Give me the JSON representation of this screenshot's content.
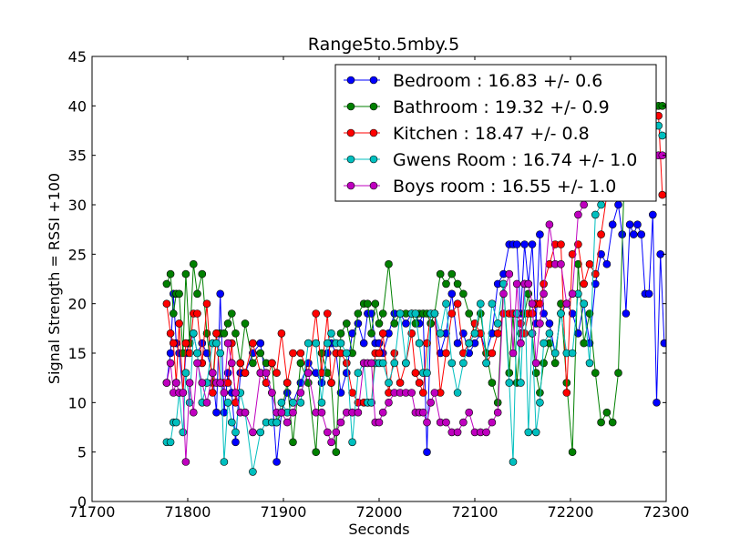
{
  "chart_data": {
    "type": "line",
    "title": "Range5to.5mby.5",
    "xlabel": "Seconds",
    "ylabel": "Signal Strength  = RSSI +100",
    "xlim": [
      71700,
      72300
    ],
    "ylim": [
      0,
      45
    ],
    "xticks": [
      "71700",
      "71800",
      "71900",
      "72000",
      "72100",
      "72200",
      "72300"
    ],
    "yticks": [
      "0",
      "5",
      "10",
      "15",
      "20",
      "25",
      "30",
      "35",
      "40",
      "45"
    ],
    "grid": false,
    "legend_position": "top-right",
    "series": [
      {
        "name": "Bedroom : 16.83 +/- 0.6",
        "color": "#0000ff",
        "x": [
          71778,
          71782,
          71785,
          71788,
          71791,
          71795,
          71798,
          71802,
          71806,
          71810,
          71815,
          71820,
          71826,
          71830,
          71834,
          71838,
          71842,
          71846,
          71850,
          71855,
          71860,
          71868,
          71876,
          71882,
          71888,
          71893,
          71898,
          71904,
          71910,
          71918,
          71926,
          71934,
          71940,
          71946,
          71950,
          71955,
          71960,
          71966,
          71972,
          71978,
          71984,
          71988,
          71992,
          71996,
          72000,
          72004,
          72010,
          72016,
          72022,
          72028,
          72034,
          72038,
          72042,
          72046,
          72050,
          72054,
          72058,
          72064,
          72070,
          72076,
          72082,
          72088,
          72094,
          72100,
          72106,
          72112,
          72118,
          72124,
          72130,
          72136,
          72140,
          72144,
          72148,
          72152,
          72156,
          72160,
          72164,
          72168,
          72172,
          72178,
          72184,
          72190,
          72196,
          72202,
          72208,
          72214,
          72220,
          72226,
          72232,
          72238,
          72244,
          72250,
          72254,
          72258,
          72262,
          72266,
          72270,
          72274,
          72278,
          72282,
          72286,
          72290,
          72294,
          72298
        ],
        "y": [
          12,
          15,
          21,
          16,
          15,
          11,
          15,
          16,
          17,
          15,
          16,
          15,
          13,
          9,
          21,
          9,
          13,
          11,
          6,
          13,
          13,
          15,
          16,
          12,
          11,
          4,
          9,
          11,
          10,
          12,
          14,
          13,
          12,
          15,
          16,
          15,
          11,
          13,
          17,
          18,
          16,
          19,
          19,
          16,
          16,
          15,
          17,
          19,
          19,
          18,
          19,
          19,
          18,
          19,
          5,
          18,
          19,
          15,
          17,
          21,
          16,
          17,
          15,
          16,
          17,
          15,
          17,
          22,
          23,
          26,
          26,
          26,
          19,
          26,
          22,
          26,
          18,
          27,
          19,
          18,
          15,
          19,
          20,
          19,
          17,
          20,
          16,
          22,
          25,
          24,
          28,
          30,
          27,
          19,
          28,
          27,
          28,
          27,
          21,
          21,
          29,
          10,
          25,
          16
        ]
      },
      {
        "name": "Bathroom : 19.32 +/- 0.9",
        "color": "#008000",
        "x": [
          71778,
          71782,
          71785,
          71788,
          71791,
          71795,
          71798,
          71802,
          71806,
          71810,
          71815,
          71820,
          71826,
          71830,
          71834,
          71838,
          71842,
          71846,
          71850,
          71855,
          71860,
          71868,
          71876,
          71882,
          71888,
          71893,
          71898,
          71904,
          71910,
          71918,
          71926,
          71934,
          71940,
          71946,
          71950,
          71955,
          71960,
          71966,
          71972,
          71978,
          71984,
          71988,
          71992,
          71996,
          72000,
          72004,
          72010,
          72016,
          72022,
          72028,
          72034,
          72038,
          72042,
          72046,
          72050,
          72054,
          72058,
          72064,
          72070,
          72076,
          72082,
          72088,
          72094,
          72100,
          72106,
          72112,
          72118,
          72124,
          72130,
          72136,
          72140,
          72144,
          72148,
          72152,
          72156,
          72160,
          72164,
          72168,
          72172,
          72178,
          72184,
          72190,
          72196,
          72202,
          72208,
          72214,
          72220,
          72226,
          72232,
          72238,
          72244,
          72250,
          72256,
          72262,
          72268,
          72274,
          72280,
          72286,
          72292,
          72296
        ],
        "y": [
          22,
          23,
          19,
          21,
          21,
          15,
          23,
          16,
          24,
          21,
          23,
          17,
          12,
          17,
          17,
          17,
          18,
          19,
          17,
          14,
          18,
          14,
          15,
          14,
          14,
          8,
          9,
          12,
          6,
          14,
          12,
          5,
          15,
          13,
          12,
          5,
          17,
          18,
          15,
          19,
          20,
          20,
          17,
          20,
          18,
          19,
          24,
          18,
          19,
          19,
          19,
          18,
          19,
          19,
          19,
          18,
          19,
          23,
          22,
          23,
          22,
          21,
          19,
          17,
          19,
          15,
          12,
          10,
          22,
          13,
          19,
          12,
          17,
          19,
          21,
          17,
          13,
          11,
          14,
          16,
          14,
          20,
          12,
          5,
          24,
          16,
          19,
          13,
          8,
          9,
          8,
          13,
          32,
          34,
          36,
          38,
          38,
          39,
          40,
          40
        ]
      },
      {
        "name": "Kitchen : 18.47 +/- 0.8",
        "color": "#ff0000",
        "x": [
          71778,
          71782,
          71785,
          71788,
          71791,
          71795,
          71798,
          71802,
          71806,
          71810,
          71815,
          71820,
          71826,
          71830,
          71834,
          71838,
          71842,
          71846,
          71850,
          71855,
          71860,
          71868,
          71876,
          71882,
          71888,
          71893,
          71898,
          71904,
          71910,
          71918,
          71926,
          71934,
          71940,
          71946,
          71950,
          71955,
          71960,
          71966,
          71972,
          71978,
          71984,
          71988,
          71992,
          71996,
          72000,
          72004,
          72010,
          72016,
          72022,
          72028,
          72034,
          72038,
          72042,
          72046,
          72050,
          72054,
          72058,
          72064,
          72070,
          72076,
          72082,
          72088,
          72094,
          72100,
          72106,
          72112,
          72118,
          72124,
          72130,
          72136,
          72140,
          72144,
          72148,
          72152,
          72156,
          72160,
          72164,
          72168,
          72172,
          72178,
          72184,
          72190,
          72196,
          72202,
          72208,
          72214,
          72220,
          72226,
          72232,
          72238,
          72244,
          72250,
          72256,
          72262,
          72268,
          72274,
          72280,
          72286,
          72292,
          72296
        ],
        "y": [
          20,
          17,
          16,
          12,
          18,
          11,
          16,
          15,
          19,
          19,
          14,
          20,
          11,
          17,
          12,
          12,
          12,
          16,
          10,
          14,
          13,
          16,
          13,
          12,
          14,
          13,
          17,
          12,
          15,
          15,
          13,
          19,
          13,
          19,
          12,
          15,
          15,
          14,
          11,
          10,
          10,
          10,
          10,
          15,
          15,
          17,
          11,
          15,
          12,
          14,
          17,
          13,
          12,
          11,
          16,
          19,
          19,
          11,
          15,
          19,
          20,
          15,
          16,
          18,
          17,
          14,
          15,
          17,
          19,
          19,
          19,
          19,
          18,
          17,
          19,
          19,
          20,
          20,
          22,
          24,
          26,
          26,
          11,
          25,
          26,
          22,
          24,
          23,
          27,
          31,
          33,
          35,
          37,
          38,
          38,
          38,
          38,
          39,
          39,
          31
        ]
      },
      {
        "name": "Gwens Room : 16.74 +/- 1.0",
        "color": "#00bfbf",
        "x": [
          71778,
          71782,
          71785,
          71788,
          71791,
          71795,
          71798,
          71802,
          71806,
          71810,
          71815,
          71820,
          71826,
          71830,
          71834,
          71838,
          71842,
          71846,
          71850,
          71855,
          71860,
          71868,
          71876,
          71882,
          71888,
          71893,
          71898,
          71904,
          71910,
          71918,
          71926,
          71934,
          71940,
          71946,
          71950,
          71955,
          71960,
          71966,
          71972,
          71978,
          71984,
          71988,
          71992,
          71996,
          72000,
          72004,
          72010,
          72016,
          72022,
          72028,
          72034,
          72038,
          72042,
          72046,
          72050,
          72054,
          72058,
          72064,
          72070,
          72076,
          72082,
          72088,
          72094,
          72100,
          72106,
          72112,
          72118,
          72124,
          72130,
          72136,
          72140,
          72144,
          72148,
          72152,
          72156,
          72160,
          72164,
          72168,
          72172,
          72178,
          72184,
          72190,
          72196,
          72202,
          72208,
          72214,
          72220,
          72226,
          72232,
          72238,
          72244,
          72250,
          72256,
          72262,
          72268,
          72274,
          72280,
          72286,
          72292,
          72296
        ],
        "y": [
          6,
          6,
          8,
          8,
          11,
          7,
          13,
          10,
          17,
          15,
          10,
          12,
          16,
          16,
          15,
          4,
          10,
          8,
          7,
          11,
          9,
          3,
          7,
          8,
          8,
          8,
          10,
          9,
          10,
          10,
          16,
          16,
          10,
          16,
          17,
          16,
          16,
          15,
          6,
          13,
          14,
          10,
          10,
          14,
          14,
          14,
          12,
          14,
          19,
          14,
          19,
          19,
          16,
          13,
          13,
          19,
          19,
          17,
          20,
          14,
          11,
          14,
          16,
          17,
          20,
          14,
          20,
          18,
          22,
          12,
          4,
          19,
          12,
          22,
          7,
          17,
          7,
          10,
          16,
          17,
          15,
          19,
          15,
          15,
          21,
          20,
          14,
          29,
          30,
          32,
          33,
          33,
          34,
          35,
          36,
          36,
          37,
          37,
          38,
          37
        ]
      },
      {
        "name": "Boys room : 16.55 +/- 1.0",
        "color": "#bf00bf",
        "x": [
          71778,
          71782,
          71785,
          71788,
          71791,
          71795,
          71798,
          71802,
          71806,
          71810,
          71815,
          71820,
          71826,
          71830,
          71834,
          71838,
          71842,
          71846,
          71850,
          71855,
          71860,
          71868,
          71876,
          71882,
          71888,
          71893,
          71898,
          71904,
          71910,
          71918,
          71926,
          71934,
          71940,
          71946,
          71950,
          71955,
          71960,
          71966,
          71972,
          71978,
          71984,
          71988,
          71992,
          71996,
          72000,
          72004,
          72010,
          72016,
          72022,
          72028,
          72034,
          72038,
          72042,
          72046,
          72050,
          72054,
          72058,
          72064,
          72070,
          72076,
          72082,
          72088,
          72094,
          72100,
          72106,
          72112,
          72118,
          72124,
          72130,
          72136,
          72140,
          72144,
          72148,
          72152,
          72156,
          72160,
          72164,
          72168,
          72172,
          72178,
          72184,
          72190,
          72196,
          72202,
          72208,
          72214,
          72220,
          72226,
          72232,
          72238,
          72244,
          72250,
          72256,
          72262,
          72268,
          72274,
          72280,
          72286,
          72292,
          72296
        ],
        "y": [
          12,
          14,
          11,
          12,
          11,
          11,
          4,
          12,
          9,
          14,
          12,
          10,
          13,
          12,
          12,
          11,
          16,
          14,
          11,
          9,
          9,
          7,
          13,
          13,
          11,
          9,
          9,
          8,
          9,
          11,
          13,
          9,
          9,
          7,
          6,
          7,
          8,
          9,
          9,
          9,
          14,
          14,
          14,
          8,
          8,
          9,
          10,
          11,
          11,
          11,
          11,
          9,
          9,
          9,
          8,
          10,
          11,
          8,
          8,
          7,
          7,
          8,
          9,
          7,
          7,
          7,
          8,
          9,
          21,
          23,
          15,
          22,
          16,
          22,
          22,
          20,
          14,
          18,
          21,
          28,
          24,
          24,
          20,
          21,
          29,
          30,
          31,
          32,
          33,
          34,
          34,
          35,
          35,
          36,
          36,
          36,
          37,
          35,
          35,
          35
        ]
      }
    ]
  }
}
